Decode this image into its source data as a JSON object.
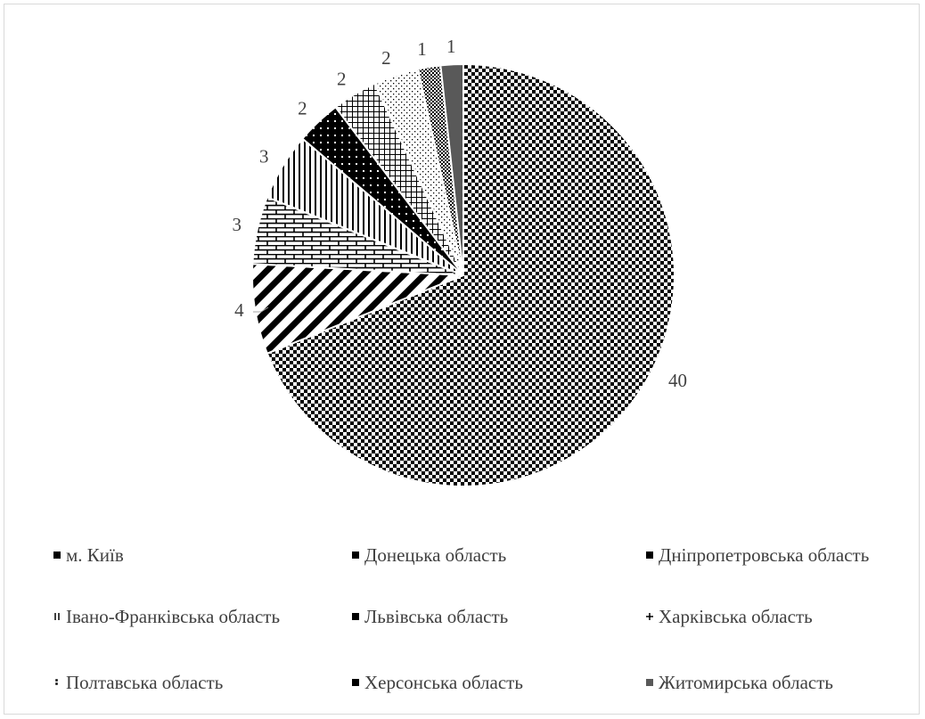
{
  "chart_data": {
    "type": "pie",
    "title": "",
    "start_angle_deg": 0,
    "direction": "clockwise",
    "legend_position": "bottom",
    "series": [
      {
        "name": "м. Київ",
        "value": 40,
        "pattern": "checker"
      },
      {
        "name": "Донецька область",
        "value": 4,
        "pattern": "diagonal-stripes"
      },
      {
        "name": "Дніпропетровська область",
        "value": 3,
        "pattern": "brick"
      },
      {
        "name": "Івано-Франківська область",
        "value": 3,
        "pattern": "vertical-stripes"
      },
      {
        "name": "Львівська область",
        "value": 2,
        "pattern": "black-with-dots"
      },
      {
        "name": "Харківська область",
        "value": 2,
        "pattern": "grid"
      },
      {
        "name": "Полтавська область",
        "value": 2,
        "pattern": "sparse-dots"
      },
      {
        "name": "Херсонська область",
        "value": 1,
        "pattern": "dense-checker"
      },
      {
        "name": "Житомирська область",
        "value": 1,
        "pattern": "solid-gray"
      }
    ]
  },
  "colors": {
    "ink": "#000000",
    "gray": "#595959",
    "text": "#404040",
    "border": "#d9d9d9"
  }
}
